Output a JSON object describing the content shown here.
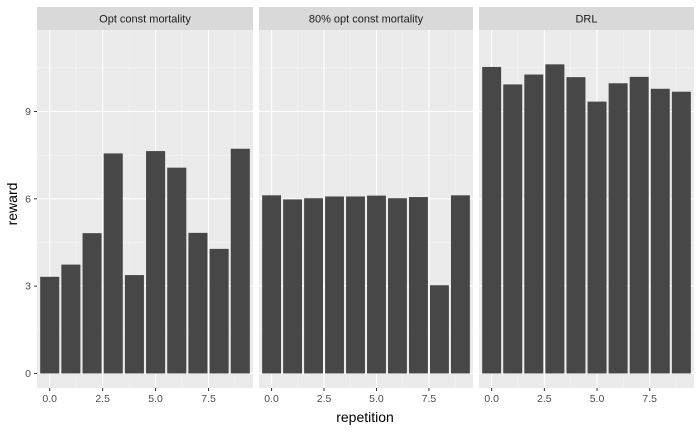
{
  "chart_data": {
    "type": "bar",
    "facets": [
      "Opt const mortality",
      "80% opt const mortality",
      "DRL"
    ],
    "xlabel": "repetition",
    "ylabel": "reward",
    "x": [
      0,
      1,
      2,
      3,
      4,
      5,
      6,
      7,
      8,
      9
    ],
    "x_ticks": [
      0.0,
      2.5,
      5.0,
      7.5
    ],
    "x_tick_labels": [
      "0.0",
      "2.5",
      "5.0",
      "7.5"
    ],
    "y_ticks": [
      0,
      3,
      6,
      9
    ],
    "y_tick_labels": [
      "0",
      "3",
      "6",
      "9"
    ],
    "xlim": [
      -0.6,
      9.6
    ],
    "ylim": [
      -0.5,
      11.8
    ],
    "grid": true,
    "series": [
      {
        "facet": "Opt const mortality",
        "values": [
          3.32,
          3.74,
          4.82,
          7.56,
          3.38,
          7.64,
          7.07,
          4.83,
          4.28,
          7.72
        ]
      },
      {
        "facet": "80% opt const mortality",
        "values": [
          6.12,
          5.98,
          6.02,
          6.08,
          6.08,
          6.11,
          6.02,
          6.06,
          3.03,
          6.12
        ]
      },
      {
        "facet": "DRL",
        "values": [
          10.53,
          9.93,
          10.27,
          10.62,
          10.18,
          9.34,
          9.97,
          10.19,
          9.78,
          9.68
        ]
      }
    ],
    "colors": {
      "bar": "#474747",
      "panel": "#ebebeb",
      "strip": "#d9d9d9",
      "grid_major": "#ffffff",
      "grid_minor": "#f5f5f5"
    }
  }
}
